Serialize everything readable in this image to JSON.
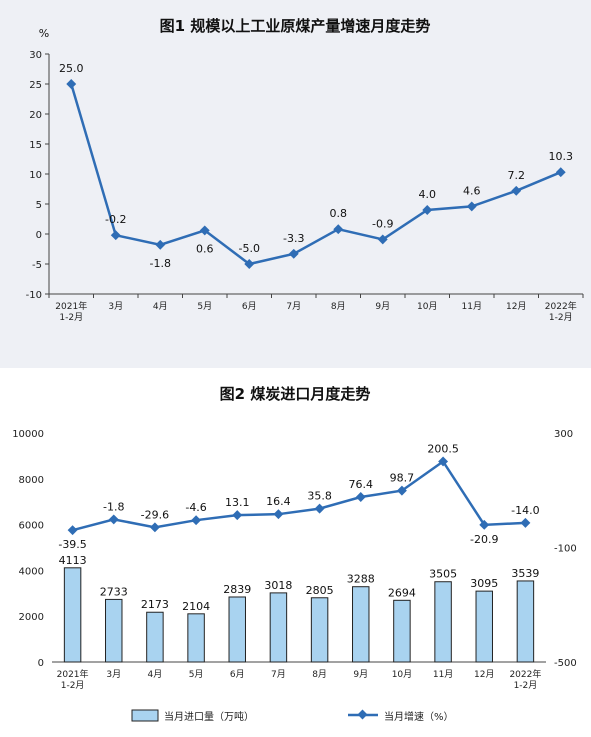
{
  "chart_data": [
    {
      "type": "line",
      "title": "图1 规模以上工业原煤产量增速月度走势",
      "ylabel": "%",
      "ylim": [
        -10,
        30
      ],
      "yticks": [
        30,
        25,
        20,
        15,
        10,
        5,
        0,
        -5,
        -10
      ],
      "categories": [
        "2021年1-2月",
        "3月",
        "4月",
        "5月",
        "6月",
        "7月",
        "8月",
        "9月",
        "10月",
        "11月",
        "12月",
        "2022年1-2月"
      ],
      "category_lines": [
        [
          "2021年",
          "1-2月"
        ],
        [
          "3月"
        ],
        [
          "4月"
        ],
        [
          "5月"
        ],
        [
          "6月"
        ],
        [
          "7月"
        ],
        [
          "8月"
        ],
        [
          "9月"
        ],
        [
          "10月"
        ],
        [
          "11月"
        ],
        [
          "12月"
        ],
        [
          "2022年",
          "1-2月"
        ]
      ],
      "values": [
        25.0,
        -0.2,
        -1.8,
        0.6,
        -5.0,
        -3.3,
        0.8,
        -0.9,
        4.0,
        4.6,
        7.2,
        10.3
      ],
      "value_labels": [
        "25.0",
        "-0.2",
        "-1.8",
        "0.6",
        "-5.0",
        "-3.3",
        "0.8",
        "-0.9",
        "4.0",
        "4.6",
        "7.2",
        "10.3"
      ],
      "color": "#2f6db5",
      "grid": false
    },
    {
      "type": "bar+line",
      "title": "图2 煤炭进口月度走势",
      "categories": [
        "2021年1-2月",
        "3月",
        "4月",
        "5月",
        "6月",
        "7月",
        "8月",
        "9月",
        "10月",
        "11月",
        "12月",
        "2022年1-2月"
      ],
      "category_lines": [
        [
          "2021年",
          "1-2月"
        ],
        [
          "3月"
        ],
        [
          "4月"
        ],
        [
          "5月"
        ],
        [
          "6月"
        ],
        [
          "7月"
        ],
        [
          "8月"
        ],
        [
          "9月"
        ],
        [
          "10月"
        ],
        [
          "11月"
        ],
        [
          "12月"
        ],
        [
          "2022年",
          "1-2月"
        ]
      ],
      "left_ylim": [
        0,
        10000
      ],
      "left_yticks": [
        10000,
        8000,
        6000,
        4000,
        2000,
        0
      ],
      "right_ylim": [
        -500,
        300
      ],
      "right_yticks": [
        300,
        -100,
        -500
      ],
      "series": [
        {
          "name": "当月进口量（万吨）",
          "type": "bar",
          "axis": "left",
          "values": [
            4113,
            2733,
            2173,
            2104,
            2839,
            3018,
            2805,
            3288,
            2694,
            3505,
            3095,
            3539
          ],
          "value_labels": [
            "4113",
            "2733",
            "2173",
            "2104",
            "2839",
            "3018",
            "2805",
            "3288",
            "2694",
            "3505",
            "3095",
            "3539"
          ],
          "color": "#a9d3f0"
        },
        {
          "name": "当月增速（%）",
          "type": "line",
          "axis": "right",
          "values": [
            -39.5,
            -1.8,
            -29.6,
            -4.6,
            13.1,
            16.4,
            35.8,
            76.4,
            98.7,
            200.5,
            -20.9,
            -14.0
          ],
          "value_labels": [
            "-39.5",
            "-1.8",
            "-29.6",
            "-4.6",
            "13.1",
            "16.4",
            "35.8",
            "76.4",
            "98.7",
            "200.5",
            "-20.9",
            "-14.0"
          ],
          "color": "#2f6db5"
        }
      ],
      "legend": "bottom"
    }
  ]
}
